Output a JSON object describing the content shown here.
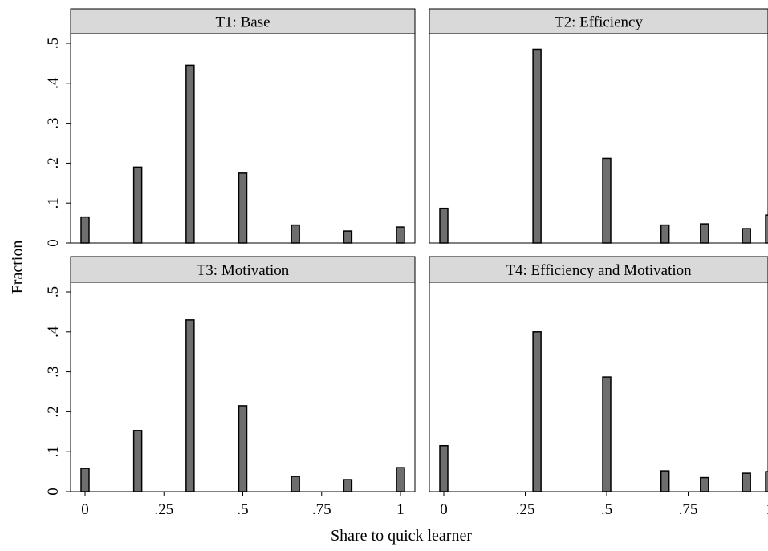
{
  "ylabel": "Fraction",
  "xlabel": "Share to quick learner",
  "y_ticks": [
    {
      "value": 0,
      "label": "0"
    },
    {
      "value": 0.1,
      "label": ".1"
    },
    {
      "value": 0.2,
      "label": ".2"
    },
    {
      "value": 0.3,
      "label": ".3"
    },
    {
      "value": 0.4,
      "label": ".4"
    },
    {
      "value": 0.5,
      "label": ".5"
    }
  ],
  "x_ticks": [
    {
      "value": 0,
      "label": "0"
    },
    {
      "value": 0.25,
      "label": ".25"
    },
    {
      "value": 0.5,
      "label": ".5"
    },
    {
      "value": 0.75,
      "label": ".75"
    },
    {
      "value": 1,
      "label": "1"
    }
  ],
  "colors": {
    "bar_fill": "#6e6e6e",
    "bar_stroke": "#000000",
    "header_fill": "#d9d9d9"
  },
  "chart_data": [
    {
      "type": "bar",
      "title": "T1: Base",
      "xlim": [
        0,
        1
      ],
      "ylim": [
        0,
        0.5
      ],
      "x": [
        0,
        0.167,
        0.333,
        0.5,
        0.667,
        0.833,
        1.0
      ],
      "values": [
        0.065,
        0.19,
        0.445,
        0.175,
        0.045,
        0.03,
        0.04
      ]
    },
    {
      "type": "bar",
      "title": "T2: Efficiency",
      "xlim": [
        0,
        1
      ],
      "ylim": [
        0,
        0.5
      ],
      "x": [
        0,
        0.286,
        0.5,
        0.679,
        0.8,
        0.929,
        1.0
      ],
      "values": [
        0.087,
        0.485,
        0.212,
        0.045,
        0.048,
        0.036,
        0.07
      ]
    },
    {
      "type": "bar",
      "title": "T3: Motivation",
      "xlim": [
        0,
        1
      ],
      "ylim": [
        0,
        0.5
      ],
      "x": [
        0,
        0.167,
        0.333,
        0.5,
        0.667,
        0.833,
        1.0
      ],
      "values": [
        0.058,
        0.153,
        0.43,
        0.215,
        0.038,
        0.03,
        0.06
      ]
    },
    {
      "type": "bar",
      "title": "T4: Efficiency and Motivation",
      "xlim": [
        0,
        1
      ],
      "ylim": [
        0,
        0.5
      ],
      "x": [
        0,
        0.286,
        0.5,
        0.679,
        0.8,
        0.929,
        1.0
      ],
      "values": [
        0.115,
        0.4,
        0.287,
        0.052,
        0.035,
        0.046,
        0.05
      ]
    }
  ]
}
